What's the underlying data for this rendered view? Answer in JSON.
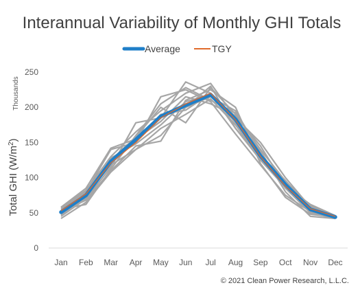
{
  "chart_data": {
    "type": "line",
    "title": "Interannual Variability of Monthly GHI Totals",
    "ylabel_main": "Total GHI (W/m",
    "ylabel_sup": "2",
    "ylabel_close": ")",
    "y_units": "Thousands",
    "ylim": [
      0,
      250
    ],
    "yticks": [
      "0",
      "50",
      "100",
      "150",
      "200",
      "250"
    ],
    "categories": [
      "Jan",
      "Feb",
      "Mar",
      "Apr",
      "May",
      "Jun",
      "Jul",
      "Aug",
      "Sep",
      "Oct",
      "Nov",
      "Dec"
    ],
    "legend": {
      "placement": "top-center",
      "entries": [
        "Average",
        "TGY"
      ]
    },
    "grid": false,
    "colors": {
      "years": "#a6a6a6",
      "average": "#1f7fc8",
      "tgy": "#e06a2b"
    },
    "series": [
      {
        "name": "Average",
        "values": [
          51,
          75,
          123,
          154,
          187,
          203,
          218,
          183,
          131,
          90,
          55,
          44
        ]
      },
      {
        "name": "TGY",
        "values": [
          53,
          77,
          121,
          150,
          185,
          205,
          220,
          182,
          130,
          88,
          56,
          45
        ]
      }
    ],
    "year_traces": [
      [
        45,
        70,
        115,
        178,
        185,
        236,
        220,
        170,
        125,
        90,
        53,
        44
      ],
      [
        55,
        80,
        140,
        150,
        215,
        225,
        208,
        162,
        118,
        75,
        52,
        43
      ],
      [
        50,
        72,
        125,
        158,
        200,
        178,
        228,
        190,
        140,
        95,
        60,
        45
      ],
      [
        48,
        76,
        118,
        140,
        160,
        200,
        215,
        195,
        135,
        85,
        50,
        42
      ],
      [
        57,
        82,
        130,
        165,
        195,
        220,
        234,
        185,
        150,
        100,
        58,
        46
      ],
      [
        52,
        68,
        110,
        145,
        152,
        210,
        225,
        200,
        120,
        72,
        48,
        44
      ],
      [
        42,
        65,
        108,
        140,
        170,
        190,
        212,
        175,
        128,
        92,
        54,
        43
      ],
      [
        58,
        85,
        142,
        155,
        180,
        215,
        205,
        188,
        145,
        88,
        62,
        46
      ],
      [
        53,
        74,
        120,
        152,
        190,
        196,
        220,
        178,
        132,
        96,
        55,
        45
      ],
      [
        49,
        78,
        128,
        148,
        175,
        208,
        218,
        182,
        125,
        86,
        57,
        44
      ],
      [
        55,
        62,
        112,
        160,
        205,
        228,
        210,
        192,
        138,
        80,
        45,
        42
      ],
      [
        47,
        73,
        124,
        156,
        188,
        200,
        230,
        170,
        130,
        94,
        56,
        45
      ]
    ]
  },
  "footer": {
    "copyright": "© 2021 Clean Power Research, L.L.C."
  }
}
